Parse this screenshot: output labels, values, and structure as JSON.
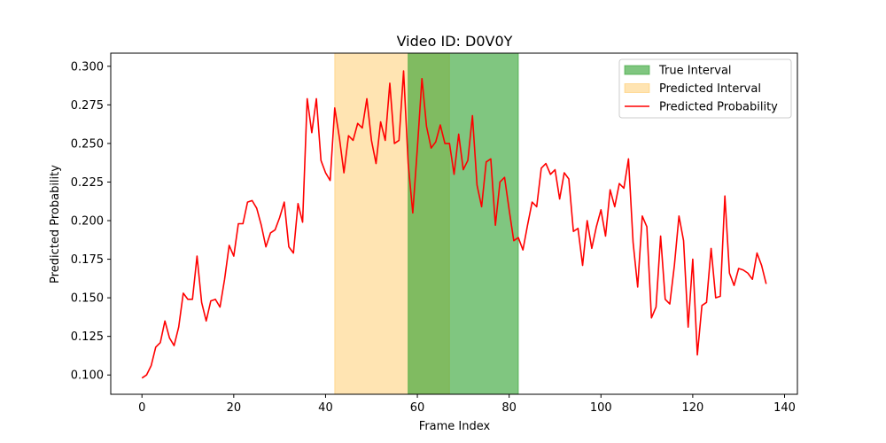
{
  "chart_data": {
    "type": "line",
    "title": "Video ID: D0V0Y",
    "xlabel": "Frame Index",
    "ylabel": "Predicted Probability",
    "xlim": [
      -6.8,
      142.8
    ],
    "ylim": [
      0.0875,
      0.3085
    ],
    "xticks": [
      0,
      20,
      40,
      60,
      80,
      100,
      120,
      140
    ],
    "yticks": [
      0.1,
      0.125,
      0.15,
      0.175,
      0.2,
      0.225,
      0.25,
      0.275,
      0.3
    ],
    "ytick_labels": [
      "0.100",
      "0.125",
      "0.150",
      "0.175",
      "0.200",
      "0.225",
      "0.250",
      "0.275",
      "0.300"
    ],
    "grid": false,
    "legend_position": "top-right",
    "true_interval": {
      "name": "True Interval",
      "start": 58,
      "end": 82,
      "color": "#2ca02c"
    },
    "predicted_interval": {
      "name": "Predicted Interval",
      "start": 42,
      "end": 67,
      "color": "#ffa500"
    },
    "series": [
      {
        "name": "Predicted Probability",
        "color": "#ff0000",
        "x": [
          0,
          1,
          2,
          3,
          4,
          5,
          6,
          7,
          8,
          9,
          10,
          11,
          12,
          13,
          14,
          15,
          16,
          17,
          18,
          19,
          20,
          21,
          22,
          23,
          24,
          25,
          26,
          27,
          28,
          29,
          30,
          31,
          32,
          33,
          34,
          35,
          36,
          37,
          38,
          39,
          40,
          41,
          42,
          43,
          44,
          45,
          46,
          47,
          48,
          49,
          50,
          51,
          52,
          53,
          54,
          55,
          56,
          57,
          58,
          59,
          60,
          61,
          62,
          63,
          64,
          65,
          66,
          67,
          68,
          69,
          70,
          71,
          72,
          73,
          74,
          75,
          76,
          77,
          78,
          79,
          80,
          81,
          82,
          83,
          84,
          85,
          86,
          87,
          88,
          89,
          90,
          91,
          92,
          93,
          94,
          95,
          96,
          97,
          98,
          99,
          100,
          101,
          102,
          103,
          104,
          105,
          106,
          107,
          108,
          109,
          110,
          111,
          112,
          113,
          114,
          115,
          116,
          117,
          118,
          119,
          120,
          121,
          122,
          123,
          124,
          125,
          126,
          127,
          128,
          129,
          130,
          131,
          132,
          133,
          134,
          135,
          136
        ],
        "values": [
          0.098,
          0.1,
          0.106,
          0.118,
          0.121,
          0.135,
          0.124,
          0.119,
          0.131,
          0.153,
          0.149,
          0.149,
          0.177,
          0.147,
          0.135,
          0.148,
          0.149,
          0.144,
          0.162,
          0.184,
          0.177,
          0.198,
          0.198,
          0.212,
          0.213,
          0.208,
          0.197,
          0.183,
          0.192,
          0.194,
          0.202,
          0.212,
          0.183,
          0.179,
          0.211,
          0.199,
          0.279,
          0.257,
          0.279,
          0.239,
          0.231,
          0.226,
          0.273,
          0.254,
          0.231,
          0.255,
          0.252,
          0.263,
          0.26,
          0.279,
          0.252,
          0.237,
          0.264,
          0.252,
          0.289,
          0.25,
          0.252,
          0.297,
          0.237,
          0.205,
          0.247,
          0.292,
          0.261,
          0.247,
          0.251,
          0.262,
          0.25,
          0.25,
          0.23,
          0.256,
          0.233,
          0.239,
          0.268,
          0.223,
          0.209,
          0.238,
          0.24,
          0.197,
          0.225,
          0.228,
          0.207,
          0.187,
          0.189,
          0.181,
          0.197,
          0.212,
          0.209,
          0.234,
          0.237,
          0.23,
          0.233,
          0.214,
          0.231,
          0.227,
          0.193,
          0.195,
          0.171,
          0.2,
          0.182,
          0.196,
          0.207,
          0.19,
          0.22,
          0.209,
          0.224,
          0.221,
          0.24,
          0.186,
          0.157,
          0.203,
          0.196,
          0.137,
          0.144,
          0.19,
          0.149,
          0.146,
          0.171,
          0.203,
          0.187,
          0.131,
          0.175,
          0.113,
          0.145,
          0.147,
          0.182,
          0.15,
          0.151,
          0.216,
          0.166,
          0.158,
          0.169,
          0.168,
          0.166,
          0.162,
          0.179,
          0.171,
          0.159
        ]
      }
    ]
  }
}
